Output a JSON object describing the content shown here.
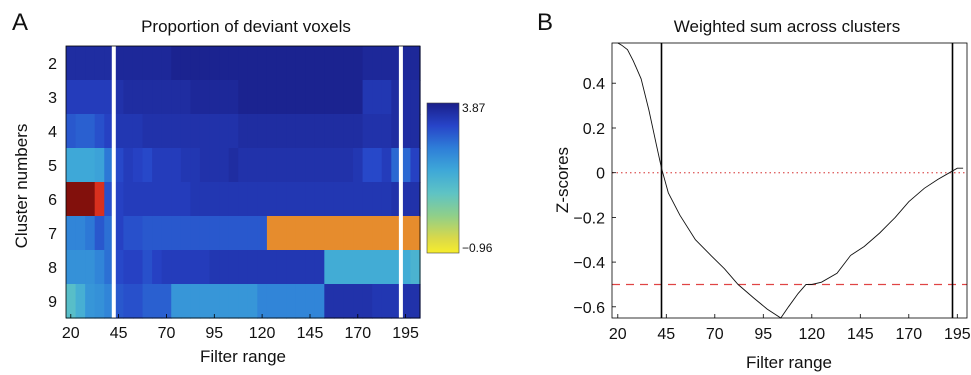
{
  "panel_a": {
    "letter": "A",
    "title": "Proportion of deviant voxels",
    "xlabel": "Filter range",
    "ylabel": "Cluster numbers",
    "xticks": [
      "20",
      "45",
      "70",
      "95",
      "120",
      "145",
      "170",
      "195"
    ],
    "yticks": [
      "2",
      "3",
      "4",
      "5",
      "6",
      "7",
      "8",
      "9"
    ],
    "colorbar": {
      "max_label": "3.87",
      "min_label": "−0.96"
    }
  },
  "panel_b": {
    "letter": "B",
    "title": "Weighted sum across clusters",
    "xlabel": "Filter range",
    "ylabel": "Z-scores",
    "xticks": [
      "20",
      "45",
      "70",
      "95",
      "120",
      "145",
      "170",
      "195"
    ],
    "yticks": [
      "0.4",
      "0.2",
      "0",
      "−0.2",
      "−0.4",
      "−0.6"
    ]
  },
  "chart_data": [
    {
      "type": "heatmap",
      "title": "Proportion of deviant voxels",
      "xlabel": "Filter range",
      "ylabel": "Cluster numbers",
      "x": [
        20,
        25,
        30,
        35,
        40,
        45,
        50,
        55,
        60,
        65,
        70,
        75,
        80,
        85,
        90,
        95,
        100,
        105,
        110,
        115,
        120,
        125,
        130,
        135,
        140,
        145,
        150,
        155,
        160,
        165,
        170,
        175,
        180,
        185,
        190,
        195,
        200
      ],
      "rows": [
        2,
        3,
        4,
        5,
        6,
        7,
        8,
        9
      ],
      "values": [
        [
          3.6,
          3.6,
          3.6,
          3.6,
          3.6,
          3.7,
          3.7,
          3.7,
          3.7,
          3.7,
          3.7,
          3.8,
          3.8,
          3.8,
          3.8,
          3.8,
          3.8,
          3.8,
          3.8,
          3.8,
          3.8,
          3.8,
          3.8,
          3.8,
          3.8,
          3.8,
          3.8,
          3.8,
          3.8,
          3.8,
          3.8,
          3.7,
          3.7,
          3.7,
          3.7,
          3.7,
          3.7
        ],
        [
          3.3,
          3.3,
          3.3,
          3.3,
          3.3,
          3.5,
          3.6,
          3.6,
          3.6,
          3.6,
          3.6,
          3.6,
          3.6,
          3.7,
          3.7,
          3.7,
          3.7,
          3.7,
          3.8,
          3.8,
          3.8,
          3.8,
          3.8,
          3.8,
          3.8,
          3.8,
          3.8,
          3.8,
          3.8,
          3.8,
          3.8,
          3.4,
          3.4,
          3.4,
          3.6,
          3.6,
          3.6
        ],
        [
          2.9,
          2.8,
          2.8,
          3.0,
          3.2,
          3.4,
          3.4,
          3.4,
          3.5,
          3.5,
          3.5,
          3.5,
          3.5,
          3.5,
          3.5,
          3.5,
          3.5,
          3.5,
          3.6,
          3.6,
          3.6,
          3.6,
          3.6,
          3.6,
          3.6,
          3.6,
          3.6,
          3.6,
          3.6,
          3.6,
          3.6,
          3.5,
          3.5,
          3.5,
          3.6,
          3.6,
          3.6
        ],
        [
          1.7,
          1.7,
          1.7,
          1.8,
          2.5,
          3.1,
          3.3,
          3.2,
          3.1,
          3.3,
          3.3,
          3.3,
          3.4,
          3.4,
          3.5,
          3.5,
          3.5,
          3.6,
          3.5,
          3.5,
          3.5,
          3.5,
          3.5,
          3.5,
          3.5,
          3.5,
          3.5,
          3.5,
          3.5,
          3.5,
          3.4,
          3.1,
          3.1,
          3.3,
          2.7,
          2.7,
          3.2
        ],
        [
          -0.9,
          -0.9,
          -0.9,
          -0.8,
          3.0,
          3.2,
          3.3,
          3.3,
          3.3,
          3.3,
          3.3,
          3.3,
          3.3,
          3.4,
          3.4,
          3.4,
          3.4,
          3.4,
          3.4,
          3.4,
          3.4,
          3.4,
          3.4,
          3.4,
          3.4,
          3.4,
          3.4,
          3.4,
          3.4,
          3.4,
          3.4,
          3.4,
          3.4,
          3.4,
          3.5,
          3.5,
          3.5
        ],
        [
          2.3,
          2.3,
          2.5,
          2.9,
          2.6,
          3.2,
          3.0,
          3.0,
          2.9,
          2.9,
          2.9,
          2.9,
          2.9,
          2.9,
          2.9,
          2.9,
          2.9,
          2.9,
          2.9,
          2.9,
          2.9,
          0.6,
          0.6,
          0.6,
          0.6,
          0.6,
          0.6,
          0.6,
          0.6,
          0.6,
          0.5,
          0.5,
          0.5,
          0.5,
          0.5,
          0.6,
          0.6
        ],
        [
          2.1,
          2.1,
          2.1,
          2.3,
          2.6,
          3.1,
          3.2,
          3.2,
          3.0,
          3.2,
          3.3,
          3.3,
          3.3,
          3.3,
          3.3,
          3.4,
          3.4,
          3.4,
          3.4,
          3.4,
          3.4,
          3.4,
          3.4,
          3.4,
          3.4,
          3.4,
          3.4,
          1.6,
          1.6,
          1.6,
          1.6,
          1.6,
          1.6,
          1.6,
          1.6,
          1.6,
          1.4
        ],
        [
          1.1,
          1.5,
          2.0,
          2.1,
          2.3,
          2.9,
          3.0,
          3.0,
          2.8,
          2.8,
          2.8,
          2.0,
          2.0,
          2.0,
          2.0,
          2.0,
          2.0,
          2.0,
          2.0,
          2.0,
          2.3,
          2.3,
          2.3,
          2.3,
          2.3,
          2.3,
          2.3,
          3.5,
          3.5,
          3.5,
          3.5,
          3.5,
          3.4,
          3.4,
          3.4,
          3.5,
          3.5
        ]
      ],
      "colorbar": {
        "min": -0.96,
        "max": 3.87,
        "colormap": "jet-like (yellow to dark blue)"
      },
      "vertical_lines_x": [
        42.5,
        192.5
      ]
    },
    {
      "type": "line",
      "title": "Weighted sum across clusters",
      "xlabel": "Filter range",
      "ylabel": "Z-scores",
      "xlim": [
        17,
        200
      ],
      "ylim": [
        -0.65,
        0.58
      ],
      "series": [
        {
          "x": [
            20,
            22,
            25,
            28,
            32,
            36,
            40,
            42.5,
            46,
            52,
            60,
            68,
            75,
            82,
            90,
            97,
            104,
            108,
            113,
            117,
            120,
            125,
            133,
            140,
            147,
            155,
            163,
            170,
            178,
            185,
            191,
            195,
            198
          ],
          "y": [
            0.58,
            0.57,
            0.55,
            0.5,
            0.42,
            0.28,
            0.12,
            0.02,
            -0.09,
            -0.19,
            -0.3,
            -0.37,
            -0.43,
            -0.5,
            -0.56,
            -0.61,
            -0.65,
            -0.6,
            -0.54,
            -0.5,
            -0.5,
            -0.49,
            -0.45,
            -0.37,
            -0.33,
            -0.27,
            -0.2,
            -0.13,
            -0.07,
            -0.03,
            0.0,
            0.02,
            0.02
          ]
        }
      ],
      "reference_lines": [
        {
          "orientation": "horizontal",
          "y": 0,
          "style": "dotted",
          "color": "#e06666"
        },
        {
          "orientation": "horizontal",
          "y": -0.5,
          "style": "dashed",
          "color": "#e04444"
        },
        {
          "orientation": "vertical",
          "x": 42.5,
          "style": "solid",
          "color": "#000000"
        },
        {
          "orientation": "vertical",
          "x": 192.5,
          "style": "solid",
          "color": "#000000"
        }
      ]
    }
  ]
}
